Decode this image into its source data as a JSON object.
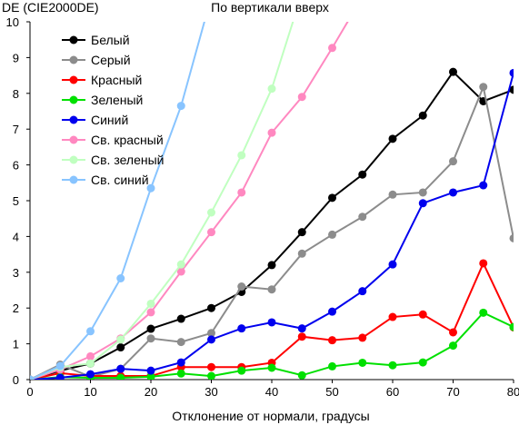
{
  "chart_data": {
    "type": "line",
    "title": "По вертикали вверх",
    "xlabel": "Отклонение от нормали, градусы",
    "ylabel": "DE (CIE2000DE)",
    "xlim": [
      0,
      80
    ],
    "ylim": [
      0,
      10
    ],
    "xticks": [
      0,
      10,
      20,
      30,
      40,
      50,
      60,
      70,
      80
    ],
    "yticks": [
      0,
      1,
      2,
      3,
      4,
      5,
      6,
      7,
      8,
      9,
      10
    ],
    "grid": false,
    "legend_position": "top-left",
    "x": [
      0,
      5,
      10,
      15,
      20,
      25,
      30,
      35,
      40,
      45,
      50,
      55,
      60,
      65,
      70,
      75,
      80
    ],
    "series": [
      {
        "name": "Белый",
        "color": "#000000",
        "values": [
          0,
          0.25,
          0.45,
          0.9,
          1.42,
          1.7,
          2.0,
          2.45,
          3.2,
          4.12,
          5.08,
          5.73,
          6.73,
          7.38,
          8.6,
          7.78,
          8.1
        ]
      },
      {
        "name": "Серый",
        "color": "#8c8c8c",
        "values": [
          0,
          0.42,
          0.08,
          0.3,
          1.15,
          1.05,
          1.3,
          2.6,
          2.52,
          3.52,
          4.05,
          4.55,
          5.17,
          5.23,
          6.1,
          8.18,
          3.95
        ]
      },
      {
        "name": "Красный",
        "color": "#ff0000",
        "values": [
          0,
          0.18,
          0.1,
          0.1,
          0.1,
          0.35,
          0.35,
          0.35,
          0.47,
          1.2,
          1.1,
          1.17,
          1.75,
          1.82,
          1.32,
          3.25,
          1.46
        ]
      },
      {
        "name": "Зеленый",
        "color": "#00e000",
        "values": [
          0,
          0.07,
          0.05,
          0.05,
          0.08,
          0.17,
          0.1,
          0.25,
          0.33,
          0.12,
          0.37,
          0.47,
          0.4,
          0.48,
          0.95,
          1.87,
          1.47
        ]
      },
      {
        "name": "Синий",
        "color": "#0000ee",
        "values": [
          0,
          0.05,
          0.15,
          0.3,
          0.25,
          0.48,
          1.12,
          1.43,
          1.6,
          1.43,
          1.9,
          2.47,
          3.22,
          4.93,
          5.23,
          5.43,
          8.57
        ]
      },
      {
        "name": "Св. красный",
        "color": "#ff88c0",
        "values": [
          0,
          0.28,
          0.65,
          1.15,
          1.88,
          3.02,
          4.12,
          5.23,
          6.9,
          7.9,
          9.27,
          10.7,
          null,
          null,
          null,
          null,
          null
        ]
      },
      {
        "name": "Св. зеленый",
        "color": "#c0ffc0",
        "values": [
          0,
          0.35,
          0.45,
          1.12,
          2.12,
          3.22,
          4.67,
          6.27,
          8.13,
          10.8,
          null,
          null,
          null,
          null,
          null,
          null,
          null
        ]
      },
      {
        "name": "Св. синий",
        "color": "#88c4ff",
        "values": [
          0,
          0.38,
          1.35,
          2.83,
          5.35,
          7.65,
          10.7,
          null,
          null,
          null,
          null,
          null,
          null,
          null,
          null,
          null,
          null
        ]
      }
    ]
  }
}
